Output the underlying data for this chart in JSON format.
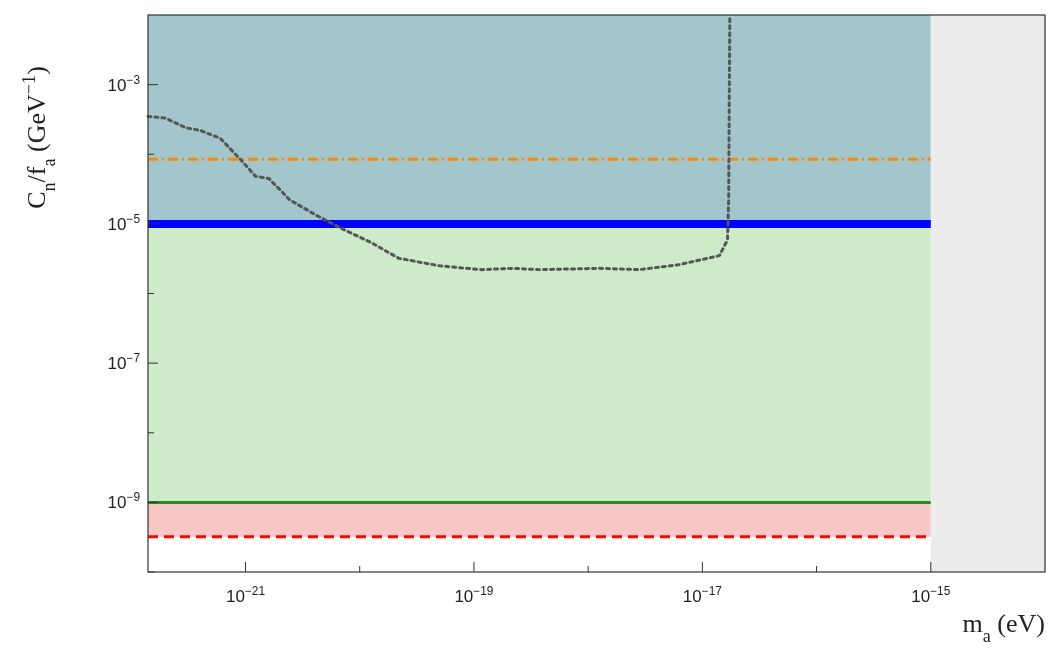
{
  "chart_data": {
    "type": "line",
    "xlabel": "m$_{a}$ (eV)",
    "ylabel": "C$_{n}$/f$_{a}$ (GeV$^{−1}$)",
    "log": "xy",
    "xlim": [
      1.4e-22,
      1e-14
    ],
    "ylim": [
      1e-10,
      0.01
    ],
    "xticks": [
      {
        "value": 1e-21,
        "label": "10$^{−21}$"
      },
      {
        "value": 1e-20,
        "label": null
      },
      {
        "value": 1e-19,
        "label": "10$^{−19}$"
      },
      {
        "value": 1e-18,
        "label": null
      },
      {
        "value": 1e-17,
        "label": "10$^{−17}$"
      },
      {
        "value": 1e-16,
        "label": null
      },
      {
        "value": 1e-15,
        "label": "10$^{−15}$"
      }
    ],
    "yticks": [
      {
        "value": 0.001,
        "label": "10$^{−3}$"
      },
      {
        "value": 0.0001,
        "label": null
      },
      {
        "value": 1e-05,
        "label": "10$^{−5}$"
      },
      {
        "value": 1e-06,
        "label": null
      },
      {
        "value": 1e-07,
        "label": "10$^{−7}$"
      },
      {
        "value": 1e-08,
        "label": null
      },
      {
        "value": 1e-09,
        "label": "10$^{−9}$"
      },
      {
        "value": 1e-10,
        "label": null
      }
    ],
    "grid": false,
    "bands": [
      {
        "axis": "y",
        "from": 1e-05,
        "to": 0.01,
        "color": "#a3c6cc"
      },
      {
        "axis": "y",
        "from": 1e-09,
        "to": 1e-05,
        "color": "#cdebc9"
      },
      {
        "axis": "y",
        "from": 3.2e-10,
        "to": 1e-09,
        "color": "#f9c6c6"
      },
      {
        "axis": "x",
        "from": 1e-15,
        "to": 1e-14,
        "color": "#ececec"
      }
    ],
    "ref_lines": [
      {
        "axis": "y",
        "value": 8.5e-05,
        "color": "#ff8c00",
        "line_style": "dashdot"
      },
      {
        "axis": "y",
        "value": 1e-05,
        "color": "#0000ff",
        "line_style": "solid"
      },
      {
        "axis": "y",
        "value": 1e-09,
        "color": "#2e8b22",
        "line_style": "solid"
      },
      {
        "axis": "y",
        "value": 3.2e-10,
        "color": "#ff0000",
        "line_style": "dashed"
      }
    ],
    "series": [
      {
        "color": "#555555",
        "line_style": "dotted",
        "x": [
          1.4e-22,
          2e-22,
          3e-22,
          4e-22,
          6e-22,
          9.1e-22,
          1.23e-21,
          1.6e-21,
          2.45e-21,
          4.1e-21,
          6.8e-21,
          1.23e-20,
          2.2e-20,
          5e-20,
          1.17e-19,
          2.2e-19,
          3.8e-19,
          1.26e-18,
          2.8e-18,
          6.3e-18,
          1.41e-17,
          1.66e-17,
          1.7e-17,
          1.72e-17,
          1.74e-17
        ],
        "values": [
          0.00035,
          0.00033,
          0.00024,
          0.00022,
          0.00017,
          8.3e-05,
          4.8e-05,
          4.5e-05,
          2.2e-05,
          1.35e-05,
          8.7e-06,
          5.5e-06,
          3.2e-06,
          2.5e-06,
          2.2e-06,
          2.3e-06,
          2.2e-06,
          2.3e-06,
          2.2e-06,
          2.6e-06,
          3.5e-06,
          5.9e-06,
          2.2e-05,
          0.0006,
          0.01
        ]
      }
    ]
  }
}
